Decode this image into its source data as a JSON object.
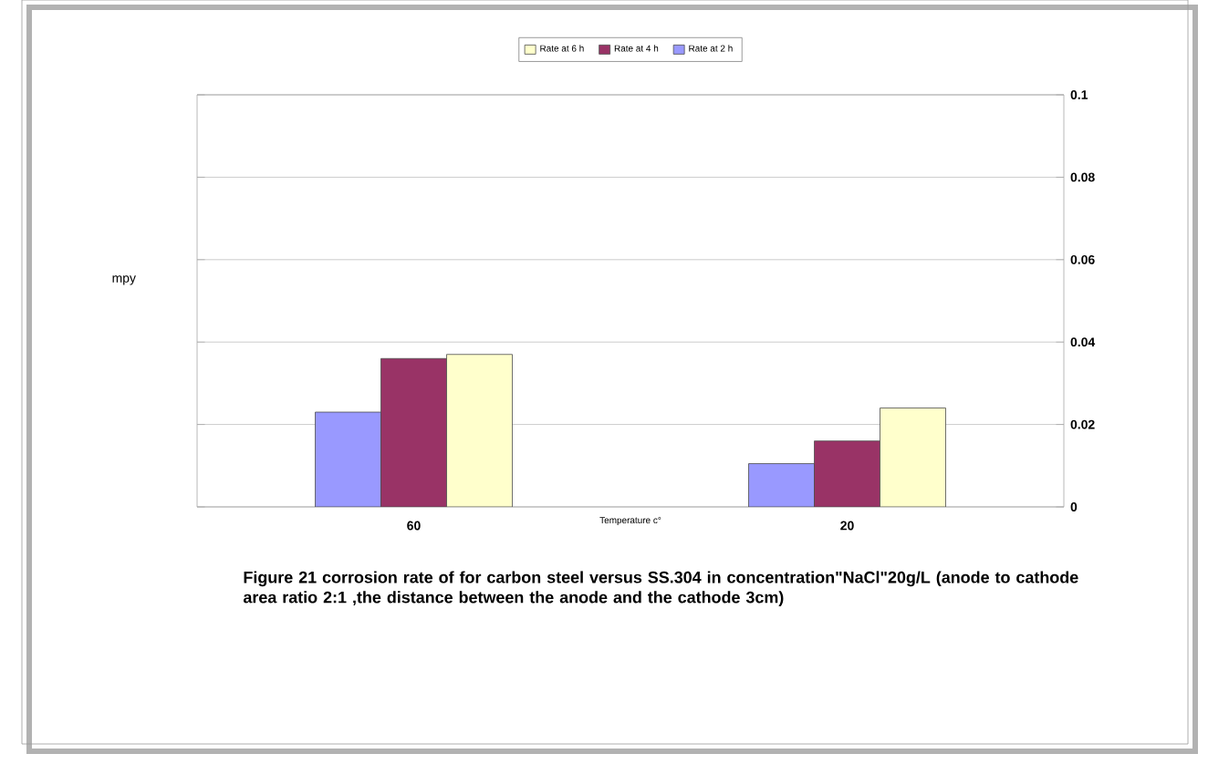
{
  "chart_data": {
    "type": "bar",
    "categories": [
      "60",
      "20"
    ],
    "xlabel": "Temperature c°",
    "ylabel": "mpy",
    "series": [
      {
        "name": "Rate at 2 h",
        "color": "#9999ff",
        "values": [
          0.023,
          0.0105
        ]
      },
      {
        "name": "Rate at 4 h",
        "color": "#993366",
        "values": [
          0.036,
          0.016
        ]
      },
      {
        "name": "Rate at 6 h",
        "color": "#ffffcc",
        "values": [
          0.037,
          0.024
        ]
      }
    ],
    "ylim": [
      0,
      0.1
    ],
    "yticks": [
      0,
      0.02,
      0.04,
      0.06,
      0.08,
      0.1
    ],
    "grid": "y",
    "legend": "top",
    "annotations": [
      "Figure  21  corrosion rate of for carbon steel versus SS.304 in concentration\"NaCl\"20g/L  (anode to cathode area ratio 2:1 ,the distance between the anode and the cathode 3cm)"
    ]
  }
}
